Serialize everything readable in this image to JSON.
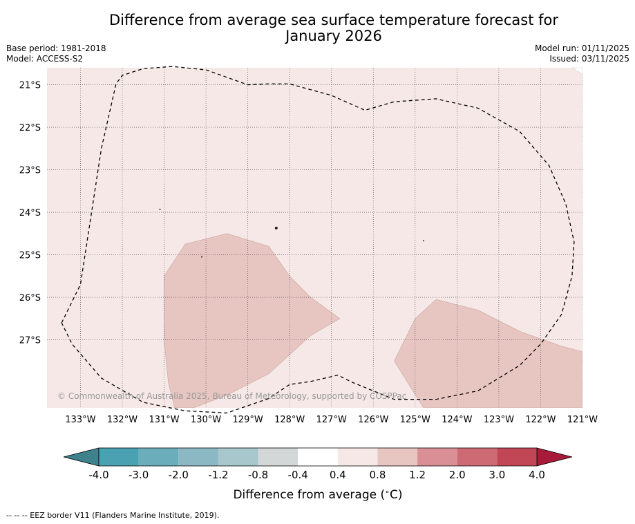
{
  "chart_data": {
    "type": "heatmap",
    "title": "Difference from average sea surface temperature forecast for January 2026",
    "title_lines": [
      "Difference from average sea surface temperature forecast for",
      "January 2026"
    ],
    "base_period": "Base period: 1981-2018",
    "model": "Model: ACCESS-S2",
    "model_run": "Model run: 01/11/2025",
    "issued": "Issued: 03/11/2025",
    "xlim": [
      -133.8,
      -121.0
    ],
    "ylim": [
      -28.6,
      -20.6
    ],
    "x_ticks": [
      {
        "value": -133,
        "label": "133°W"
      },
      {
        "value": -132,
        "label": "132°W"
      },
      {
        "value": -131,
        "label": "131°W"
      },
      {
        "value": -130,
        "label": "130°W"
      },
      {
        "value": -129,
        "label": "129°W"
      },
      {
        "value": -128,
        "label": "128°W"
      },
      {
        "value": -127,
        "label": "127°W"
      },
      {
        "value": -126,
        "label": "126°W"
      },
      {
        "value": -125,
        "label": "125°W"
      },
      {
        "value": -124,
        "label": "124°W"
      },
      {
        "value": -123,
        "label": "123°W"
      },
      {
        "value": -122,
        "label": "122°W"
      },
      {
        "value": -121,
        "label": "121°W"
      }
    ],
    "y_ticks": [
      {
        "value": -21,
        "label": "21°S"
      },
      {
        "value": -22,
        "label": "22°S"
      },
      {
        "value": -23,
        "label": "23°S"
      },
      {
        "value": -24,
        "label": "24°S"
      },
      {
        "value": -25,
        "label": "25°S"
      },
      {
        "value": -26,
        "label": "26°S"
      },
      {
        "value": -27,
        "label": "27°S"
      }
    ],
    "background_category": "0.4 to 0.8",
    "regions": [
      {
        "category": "0.8 to 1.2",
        "points": [
          [
            -130.5,
            -24.75
          ],
          [
            -129.5,
            -24.5
          ],
          [
            -128.5,
            -24.8
          ],
          [
            -128.0,
            -25.5
          ],
          [
            -127.5,
            -26.0
          ],
          [
            -126.8,
            -26.5
          ],
          [
            -127.5,
            -26.9
          ],
          [
            -128.5,
            -27.8
          ],
          [
            -129.5,
            -28.3
          ],
          [
            -130.3,
            -28.6
          ],
          [
            -130.75,
            -28.6
          ],
          [
            -130.9,
            -28.0
          ],
          [
            -131.0,
            -27.0
          ],
          [
            -131.0,
            -25.5
          ]
        ]
      },
      {
        "category": "0.8 to 1.2",
        "points": [
          [
            -125.0,
            -26.5
          ],
          [
            -124.5,
            -26.05
          ],
          [
            -123.5,
            -26.3
          ],
          [
            -122.5,
            -26.8
          ],
          [
            -121.5,
            -27.15
          ],
          [
            -121.0,
            -27.28
          ],
          [
            -121.0,
            -28.6
          ],
          [
            -124.8,
            -28.6
          ],
          [
            -125.5,
            -27.5
          ]
        ]
      }
    ],
    "eez_border": [
      [
        -133.45,
        -26.6
      ],
      [
        -133.0,
        -25.7
      ],
      [
        -132.5,
        -22.5
      ],
      [
        -132.15,
        -20.98
      ],
      [
        -132.0,
        -20.78
      ],
      [
        -131.5,
        -20.62
      ],
      [
        -130.8,
        -20.57
      ],
      [
        -130.0,
        -20.65
      ],
      [
        -129.0,
        -21.0
      ],
      [
        -128.5,
        -20.98
      ],
      [
        -128.0,
        -20.98
      ],
      [
        -127.0,
        -21.25
      ],
      [
        -126.2,
        -21.6
      ],
      [
        -125.5,
        -21.4
      ],
      [
        -124.5,
        -21.33
      ],
      [
        -123.5,
        -21.55
      ],
      [
        -122.5,
        -22.1
      ],
      [
        -121.8,
        -22.9
      ],
      [
        -121.4,
        -23.8
      ],
      [
        -121.2,
        -24.7
      ],
      [
        -121.25,
        -25.5
      ],
      [
        -121.5,
        -26.4
      ],
      [
        -122.0,
        -27.1
      ],
      [
        -122.5,
        -27.6
      ],
      [
        -123.5,
        -28.2
      ],
      [
        -124.5,
        -28.4
      ],
      [
        -125.5,
        -28.4
      ],
      [
        -126.5,
        -28.0
      ],
      [
        -126.85,
        -27.83
      ],
      [
        -127.5,
        -27.98
      ],
      [
        -128.0,
        -28.05
      ],
      [
        -128.5,
        -28.38
      ],
      [
        -129.5,
        -28.72
      ],
      [
        -130.5,
        -28.67
      ],
      [
        -131.5,
        -28.47
      ],
      [
        -132.5,
        -27.9
      ],
      [
        -133.2,
        -27.1
      ],
      [
        -133.45,
        -26.6
      ]
    ],
    "islands": [
      {
        "lon": -128.32,
        "lat": -24.37
      },
      {
        "lon": -130.1,
        "lat": -25.05
      },
      {
        "lon": -131.1,
        "lat": -23.93
      },
      {
        "lon": -124.8,
        "lat": -24.67
      }
    ],
    "copyright": "© Commonwealth of Australia 2025, Bureau of Meteorology, supported by COSPPac",
    "colorbar": {
      "label": "Difference from average (∘C)",
      "label_prefix": "Difference from average (",
      "label_degree": "∘",
      "label_suffix": "C)",
      "boundaries": [
        "-4.0",
        "-3.0",
        "-2.0",
        "-1.2",
        "-0.8",
        "-0.4",
        "0.4",
        "0.8",
        "1.2",
        "2.0",
        "3.0",
        "4.0"
      ],
      "colors": [
        "#4aa1b1",
        "#6cadbc",
        "#8cb8c4",
        "#a8c7cc",
        "#d3d7d8",
        "#ffffff",
        "#f5e8e7",
        "#e7c5c1",
        "#d98f95",
        "#ce6a73",
        "#c24756"
      ],
      "under_color": "#3f818c",
      "over_color": "#a81b38"
    },
    "footnote": "--  --  -- EEZ border V11 (Flanders Marine Institute, 2019)."
  }
}
